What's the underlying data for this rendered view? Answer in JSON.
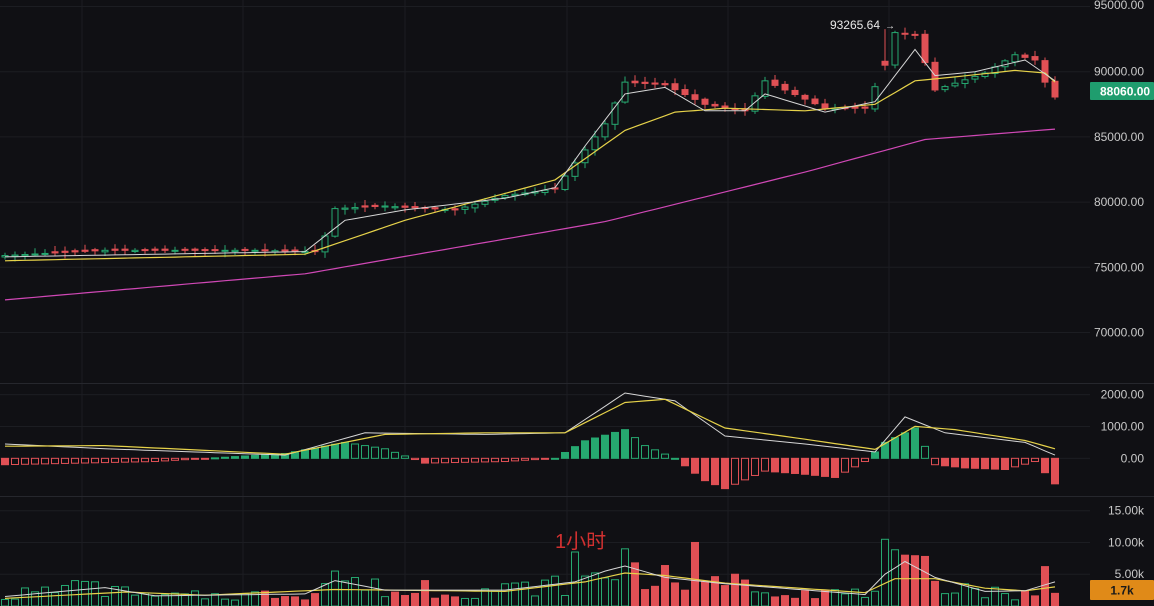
{
  "colors": {
    "background": "#101014",
    "grid": "#1c1d22",
    "pane_divider": "#26272d",
    "axis_text": "#c8c8c8",
    "up": "#26a870",
    "down": "#e05055",
    "ma_fast": "#d6d6d6",
    "ma_mid": "#e6d24a",
    "ma_slow": "#d048b6",
    "price_tag_bg": "#1f9d6e",
    "volume_tag_bg": "#e08a18",
    "annotation": "#d03030"
  },
  "chart_data": {
    "type": "candlestick",
    "timeframe_label": "1小时",
    "price_pane": {
      "ylim": [
        66200,
        95500
      ],
      "y_ticks": [
        95000,
        90000,
        85000,
        80000,
        75000,
        70000
      ],
      "y_tick_labels": [
        "95000.00",
        "90000.00",
        "85000.00",
        "80000.00",
        "75000.00",
        "70000.00"
      ],
      "current_price": 88060,
      "current_price_label": "88060.00",
      "high_marker": {
        "value": 93265.64,
        "label": "93265.64",
        "index": 88
      },
      "close_anchors": [
        [
          0,
          75900
        ],
        [
          10,
          76300
        ],
        [
          25,
          76300
        ],
        [
          31,
          76200
        ],
        [
          32,
          77400
        ],
        [
          33,
          79500
        ],
        [
          38,
          79700
        ],
        [
          40,
          79600
        ],
        [
          45,
          79400
        ],
        [
          50,
          80500
        ],
        [
          55,
          81000
        ],
        [
          57,
          83000
        ],
        [
          60,
          86000
        ],
        [
          62,
          89200
        ],
        [
          66,
          89000
        ],
        [
          70,
          87500
        ],
        [
          74,
          87000
        ],
        [
          76,
          89300
        ],
        [
          82,
          87200
        ],
        [
          86,
          87200
        ],
        [
          88,
          90500
        ],
        [
          89,
          93000
        ],
        [
          91,
          92800
        ],
        [
          93,
          88600
        ],
        [
          98,
          89900
        ],
        [
          101,
          91300
        ],
        [
          103,
          90900
        ],
        [
          104,
          89200
        ],
        [
          105,
          88060
        ]
      ],
      "ma_fast_anchors": [
        [
          0,
          75800
        ],
        [
          30,
          76200
        ],
        [
          34,
          78600
        ],
        [
          40,
          79400
        ],
        [
          50,
          80300
        ],
        [
          55,
          81100
        ],
        [
          58,
          84300
        ],
        [
          62,
          88300
        ],
        [
          66,
          88800
        ],
        [
          70,
          87000
        ],
        [
          74,
          87000
        ],
        [
          76,
          88300
        ],
        [
          82,
          86900
        ],
        [
          87,
          87700
        ],
        [
          91,
          91700
        ],
        [
          93,
          89700
        ],
        [
          97,
          90000
        ],
        [
          102,
          90900
        ],
        [
          105,
          89300
        ]
      ],
      "ma_mid_anchors": [
        [
          0,
          75500
        ],
        [
          30,
          76000
        ],
        [
          40,
          78600
        ],
        [
          55,
          81700
        ],
        [
          62,
          85500
        ],
        [
          67,
          86900
        ],
        [
          72,
          87200
        ],
        [
          80,
          87000
        ],
        [
          87,
          87500
        ],
        [
          91,
          89300
        ],
        [
          95,
          89600
        ],
        [
          101,
          90100
        ],
        [
          104,
          89900
        ],
        [
          105,
          89200
        ]
      ],
      "ma_slow_anchors": [
        [
          0,
          72500
        ],
        [
          30,
          74500
        ],
        [
          60,
          78500
        ],
        [
          80,
          82300
        ],
        [
          92,
          84800
        ],
        [
          105,
          85600
        ]
      ]
    },
    "macd_pane": {
      "ylim": [
        -1150,
        2300
      ],
      "y_ticks": [
        2000,
        1000,
        0
      ],
      "y_tick_labels": [
        "2000.00",
        "1000.00",
        "0.00"
      ],
      "hist_anchors": [
        [
          0,
          -200
        ],
        [
          15,
          -100
        ],
        [
          28,
          150
        ],
        [
          34,
          500
        ],
        [
          38,
          300
        ],
        [
          42,
          -150
        ],
        [
          50,
          -100
        ],
        [
          55,
          0
        ],
        [
          58,
          550
        ],
        [
          62,
          900
        ],
        [
          64,
          400
        ],
        [
          67,
          0
        ],
        [
          70,
          -700
        ],
        [
          72,
          -950
        ],
        [
          76,
          -400
        ],
        [
          80,
          -500
        ],
        [
          83,
          -600
        ],
        [
          86,
          -100
        ],
        [
          88,
          500
        ],
        [
          91,
          950
        ],
        [
          93,
          -200
        ],
        [
          96,
          -300
        ],
        [
          100,
          -350
        ],
        [
          103,
          -100
        ],
        [
          105,
          -800
        ]
      ],
      "macd_anchors": [
        [
          0,
          450
        ],
        [
          10,
          300
        ],
        [
          28,
          100
        ],
        [
          36,
          800
        ],
        [
          48,
          750
        ],
        [
          56,
          800
        ],
        [
          62,
          2050
        ],
        [
          67,
          1800
        ],
        [
          72,
          700
        ],
        [
          80,
          450
        ],
        [
          87,
          200
        ],
        [
          90,
          1300
        ],
        [
          94,
          800
        ],
        [
          102,
          500
        ],
        [
          105,
          100
        ]
      ],
      "signal_anchors": [
        [
          0,
          380
        ],
        [
          10,
          400
        ],
        [
          28,
          130
        ],
        [
          38,
          750
        ],
        [
          48,
          800
        ],
        [
          56,
          800
        ],
        [
          62,
          1750
        ],
        [
          66,
          1850
        ],
        [
          72,
          950
        ],
        [
          80,
          600
        ],
        [
          87,
          280
        ],
        [
          91,
          1000
        ],
        [
          95,
          900
        ],
        [
          102,
          560
        ],
        [
          105,
          300
        ]
      ]
    },
    "volume_pane": {
      "ylim": [
        0,
        17000
      ],
      "y_ticks": [
        15000,
        10000,
        5000
      ],
      "y_tick_labels": [
        "15.00k",
        "10.00k",
        "5.00k"
      ],
      "current_volume_label": "1.7k",
      "volume_anchors": [
        [
          0,
          1800
        ],
        [
          8,
          3000
        ],
        [
          14,
          1500
        ],
        [
          30,
          2000
        ],
        [
          33,
          4500
        ],
        [
          40,
          2000
        ],
        [
          50,
          2800
        ],
        [
          56,
          3500
        ],
        [
          60,
          5000
        ],
        [
          62,
          6000
        ],
        [
          66,
          4500
        ],
        [
          70,
          3500
        ],
        [
          78,
          2800
        ],
        [
          86,
          1800
        ],
        [
          88,
          7000
        ],
        [
          91,
          5500
        ],
        [
          94,
          4000
        ],
        [
          100,
          1800
        ],
        [
          103,
          2500
        ],
        [
          104,
          5000
        ],
        [
          105,
          1700
        ]
      ],
      "spikes": [
        [
          7,
          4000
        ],
        [
          12,
          3000
        ],
        [
          33,
          5500
        ],
        [
          42,
          4000
        ],
        [
          57,
          8500
        ],
        [
          62,
          9000
        ],
        [
          69,
          10000
        ],
        [
          73,
          5000
        ],
        [
          88,
          10500
        ],
        [
          90,
          8000
        ],
        [
          92,
          7800
        ],
        [
          104,
          6200
        ]
      ],
      "ma_short_anchors": [
        [
          0,
          1500
        ],
        [
          10,
          2900
        ],
        [
          15,
          1600
        ],
        [
          30,
          1900
        ],
        [
          33,
          4000
        ],
        [
          38,
          2500
        ],
        [
          50,
          2500
        ],
        [
          57,
          3800
        ],
        [
          60,
          5500
        ],
        [
          62,
          6300
        ],
        [
          66,
          4500
        ],
        [
          72,
          3500
        ],
        [
          86,
          1800
        ],
        [
          88,
          5000
        ],
        [
          90,
          7000
        ],
        [
          93,
          4500
        ],
        [
          98,
          2300
        ],
        [
          102,
          2400
        ],
        [
          105,
          3800
        ]
      ],
      "ma_long_anchors": [
        [
          0,
          1200
        ],
        [
          12,
          2200
        ],
        [
          20,
          1700
        ],
        [
          33,
          2600
        ],
        [
          50,
          2300
        ],
        [
          58,
          3800
        ],
        [
          62,
          5200
        ],
        [
          66,
          4800
        ],
        [
          72,
          3600
        ],
        [
          86,
          2100
        ],
        [
          89,
          4300
        ],
        [
          93,
          4300
        ],
        [
          98,
          2800
        ],
        [
          102,
          2400
        ],
        [
          105,
          3000
        ]
      ]
    }
  }
}
